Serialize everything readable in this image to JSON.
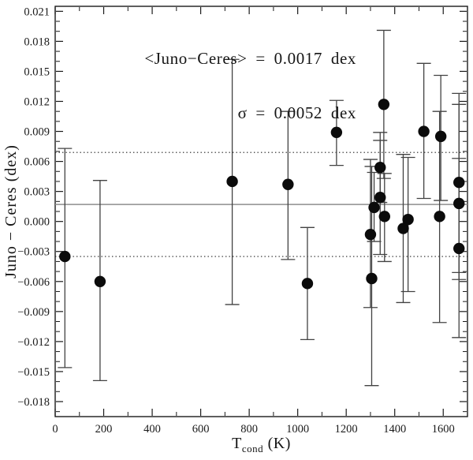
{
  "annotation": {
    "line1": "<Juno−Ceres> = 0.0017 dex",
    "line2": "σ = 0.0052 dex"
  },
  "chart_data": {
    "type": "scatter",
    "title": "",
    "xlabel": {
      "main": "T",
      "sub": "cond",
      "unit": " (K)"
    },
    "ylabel": "Juno − Ceres (dex)",
    "xlim": [
      0,
      1700
    ],
    "ylim": [
      -0.0195,
      0.0215
    ],
    "grid": false,
    "legend": null,
    "mean": 0.0017,
    "sigma": 0.0052,
    "sigma_lines": [
      0.0069,
      -0.0035
    ],
    "x_ticks": [
      {
        "v": 0,
        "label": "0"
      },
      {
        "v": 200,
        "label": "200"
      },
      {
        "v": 400,
        "label": "400"
      },
      {
        "v": 600,
        "label": "600"
      },
      {
        "v": 800,
        "label": "800"
      },
      {
        "v": 1000,
        "label": "1000"
      },
      {
        "v": 1200,
        "label": "1200"
      },
      {
        "v": 1400,
        "label": "1400"
      },
      {
        "v": 1600,
        "label": "1600"
      }
    ],
    "x_minor_step": 100,
    "y_ticks": [
      {
        "v": 0.021,
        "label": "0.021"
      },
      {
        "v": 0.018,
        "label": "0.018"
      },
      {
        "v": 0.015,
        "label": "0.015"
      },
      {
        "v": 0.012,
        "label": "0.012"
      },
      {
        "v": 0.009,
        "label": "0.009"
      },
      {
        "v": 0.006,
        "label": "0.006"
      },
      {
        "v": 0.003,
        "label": "0.003"
      },
      {
        "v": 0.0,
        "label": "0.000"
      },
      {
        "v": -0.003,
        "label": "−0.003"
      },
      {
        "v": -0.006,
        "label": "−0.006"
      },
      {
        "v": -0.009,
        "label": "−0.009"
      },
      {
        "v": -0.012,
        "label": "−0.012"
      },
      {
        "v": -0.015,
        "label": "−0.015"
      },
      {
        "v": -0.018,
        "label": "−0.018"
      }
    ],
    "y_minor_step": 0.001,
    "points": [
      {
        "x": 40,
        "y": -0.0035,
        "lo": -0.0146,
        "hi": 0.0073
      },
      {
        "x": 185,
        "y": -0.006,
        "lo": -0.0159,
        "hi": 0.0041
      },
      {
        "x": 730,
        "y": 0.004,
        "lo": -0.0083,
        "hi": 0.0162
      },
      {
        "x": 960,
        "y": 0.0037,
        "lo": -0.0038,
        "hi": 0.011
      },
      {
        "x": 1040,
        "y": -0.0062,
        "lo": -0.0118,
        "hi": -0.0006
      },
      {
        "x": 1160,
        "y": 0.0089,
        "lo": 0.0056,
        "hi": 0.0121
      },
      {
        "x": 1300,
        "y": -0.0013,
        "lo": -0.0086,
        "hi": 0.0062
      },
      {
        "x": 1305,
        "y": -0.0057,
        "lo": -0.0164,
        "hi": 0.0055
      },
      {
        "x": 1315,
        "y": 0.0014,
        "lo": -0.002,
        "hi": 0.0049
      },
      {
        "x": 1340,
        "y": 0.0054,
        "lo": 0.0019,
        "hi": 0.0089
      },
      {
        "x": 1340,
        "y": 0.0024,
        "lo": -0.0033,
        "hi": 0.0081
      },
      {
        "x": 1355,
        "y": 0.0117,
        "lo": 0.0043,
        "hi": 0.0191
      },
      {
        "x": 1358,
        "y": 0.0005,
        "lo": -0.004,
        "hi": 0.0048
      },
      {
        "x": 1435,
        "y": -0.0007,
        "lo": -0.0081,
        "hi": 0.0067
      },
      {
        "x": 1455,
        "y": 0.0002,
        "lo": -0.007,
        "hi": 0.0064
      },
      {
        "x": 1520,
        "y": 0.009,
        "lo": 0.0023,
        "hi": 0.0158
      },
      {
        "x": 1585,
        "y": 0.0005,
        "lo": -0.0101,
        "hi": 0.011
      },
      {
        "x": 1590,
        "y": 0.0085,
        "lo": 0.0021,
        "hi": 0.0146
      },
      {
        "x": 1665,
        "y": 0.0039,
        "lo": -0.0051,
        "hi": 0.0128
      },
      {
        "x": 1665,
        "y": 0.0018,
        "lo": -0.0058,
        "hi": 0.0117
      },
      {
        "x": 1665,
        "y": -0.0027,
        "lo": -0.0116,
        "hi": 0.0063
      }
    ],
    "colors": {
      "background": "#ffffff",
      "frame": "#1a1a1a",
      "point": "#0b0b0b",
      "errorbar": "#424242",
      "mean_line": "#8e8e8e",
      "sigma_line": "#1f1f1f",
      "text": "#151515"
    }
  }
}
